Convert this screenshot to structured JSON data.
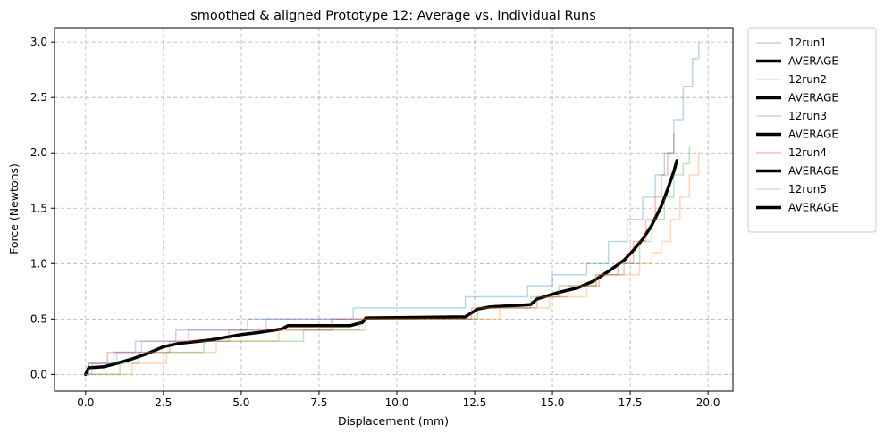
{
  "chart_data": {
    "type": "line",
    "title": "smoothed & aligned Prototype 12: Average vs. Individual Runs",
    "xlabel": "Displacement (mm)",
    "ylabel": "Force (Newtons)",
    "xlim": [
      -1.0,
      20.8
    ],
    "ylim": [
      -0.15,
      3.13
    ],
    "x_ticks": [
      0.0,
      2.5,
      5.0,
      7.5,
      10.0,
      12.5,
      15.0,
      17.5,
      20.0
    ],
    "x_tick_labels": [
      "0.0",
      "2.5",
      "5.0",
      "7.5",
      "10.0",
      "12.5",
      "15.0",
      "17.5",
      "20.0"
    ],
    "y_ticks": [
      0.0,
      0.5,
      1.0,
      1.5,
      2.0,
      2.5,
      3.0
    ],
    "y_tick_labels": [
      "0.0",
      "0.5",
      "1.0",
      "1.5",
      "2.0",
      "2.5",
      "3.0"
    ],
    "grid": true,
    "legend_position": "outside-upper-right",
    "legend": [
      "12run1",
      "AVERAGE",
      "12run2",
      "AVERAGE",
      "12run3",
      "AVERAGE",
      "12run4",
      "AVERAGE",
      "12run5",
      "AVERAGE"
    ],
    "series": [
      {
        "name": "12run1",
        "color": "#1f77b4",
        "opacity": 0.3,
        "width": 1.5,
        "step": true,
        "points": [
          [
            0,
            0
          ],
          [
            0.1,
            0.1
          ],
          [
            0.9,
            0.2
          ],
          [
            1.6,
            0.3
          ],
          [
            2.9,
            0.4
          ],
          [
            5.2,
            0.5
          ],
          [
            7.0,
            0.5
          ],
          [
            8.6,
            0.6
          ],
          [
            12.2,
            0.7
          ],
          [
            14.2,
            0.8
          ],
          [
            15.0,
            0.9
          ],
          [
            16.1,
            1.0
          ],
          [
            16.8,
            1.2
          ],
          [
            17.4,
            1.4
          ],
          [
            17.9,
            1.6
          ],
          [
            18.3,
            1.8
          ],
          [
            18.6,
            2.0
          ],
          [
            18.9,
            2.3
          ],
          [
            19.2,
            2.6
          ],
          [
            19.5,
            2.85
          ],
          [
            19.7,
            3.0
          ]
        ]
      },
      {
        "name": "AVERAGE",
        "color": "#000000",
        "opacity": 1,
        "width": 3.5,
        "step": false,
        "points": [
          [
            0,
            0
          ],
          [
            0.1,
            0.06
          ],
          [
            0.6,
            0.07
          ],
          [
            1.0,
            0.1
          ],
          [
            1.5,
            0.14
          ],
          [
            2.0,
            0.19
          ],
          [
            2.5,
            0.25
          ],
          [
            3.0,
            0.28
          ],
          [
            4.0,
            0.31
          ],
          [
            5.0,
            0.36
          ],
          [
            5.6,
            0.38
          ],
          [
            6.3,
            0.41
          ],
          [
            6.5,
            0.44
          ],
          [
            8.5,
            0.44
          ],
          [
            8.9,
            0.47
          ],
          [
            9.0,
            0.51
          ],
          [
            12.2,
            0.52
          ],
          [
            12.6,
            0.59
          ],
          [
            13.0,
            0.61
          ],
          [
            14.3,
            0.63
          ],
          [
            14.5,
            0.68
          ],
          [
            15.2,
            0.74
          ],
          [
            15.8,
            0.78
          ],
          [
            16.3,
            0.84
          ],
          [
            16.8,
            0.93
          ],
          [
            17.3,
            1.03
          ],
          [
            17.6,
            1.12
          ],
          [
            17.9,
            1.22
          ],
          [
            18.2,
            1.35
          ],
          [
            18.5,
            1.52
          ],
          [
            18.7,
            1.67
          ],
          [
            18.9,
            1.83
          ],
          [
            19.0,
            1.93
          ]
        ]
      },
      {
        "name": "12run2",
        "color": "#ff7f0e",
        "opacity": 0.3,
        "width": 1.5,
        "step": true,
        "points": [
          [
            0,
            0
          ],
          [
            1.5,
            0.1
          ],
          [
            2.6,
            0.2
          ],
          [
            4.2,
            0.3
          ],
          [
            6.2,
            0.4
          ],
          [
            8.8,
            0.5
          ],
          [
            13.3,
            0.6
          ],
          [
            14.9,
            0.7
          ],
          [
            16.1,
            0.8
          ],
          [
            16.4,
            0.9
          ],
          [
            17.8,
            1.0
          ],
          [
            18.2,
            1.1
          ],
          [
            18.5,
            1.2
          ],
          [
            18.8,
            1.4
          ],
          [
            19.1,
            1.6
          ],
          [
            19.4,
            1.8
          ],
          [
            19.7,
            2.0
          ]
        ]
      },
      {
        "name": "12run3",
        "color": "#2ca02c",
        "opacity": 0.3,
        "width": 1.5,
        "step": true,
        "points": [
          [
            0,
            0
          ],
          [
            1.1,
            0.1
          ],
          [
            1.7,
            0.2
          ],
          [
            3.8,
            0.3
          ],
          [
            7.0,
            0.4
          ],
          [
            9.0,
            0.5
          ],
          [
            12.6,
            0.6
          ],
          [
            14.3,
            0.7
          ],
          [
            15.2,
            0.8
          ],
          [
            16.4,
            0.9
          ],
          [
            17.3,
            1.0
          ],
          [
            17.8,
            1.2
          ],
          [
            18.2,
            1.4
          ],
          [
            18.6,
            1.6
          ],
          [
            18.9,
            1.8
          ],
          [
            19.2,
            1.9
          ],
          [
            19.4,
            2.05
          ]
        ]
      },
      {
        "name": "12run4",
        "color": "#d62728",
        "opacity": 0.3,
        "width": 1.5,
        "step": true,
        "points": [
          [
            0,
            0
          ],
          [
            0.1,
            0.1
          ],
          [
            0.7,
            0.2
          ],
          [
            2.7,
            0.3
          ],
          [
            4.6,
            0.4
          ],
          [
            7.9,
            0.5
          ],
          [
            9.0,
            0.5
          ],
          [
            12.4,
            0.6
          ],
          [
            14.5,
            0.7
          ],
          [
            15.5,
            0.8
          ],
          [
            16.5,
            0.9
          ],
          [
            17.1,
            1.0
          ],
          [
            17.6,
            1.2
          ],
          [
            18.0,
            1.4
          ],
          [
            18.3,
            1.6
          ],
          [
            18.5,
            1.8
          ],
          [
            18.7,
            2.0
          ],
          [
            18.9,
            2.17
          ]
        ]
      },
      {
        "name": "12run5",
        "color": "#9467bd",
        "opacity": 0.3,
        "width": 1.5,
        "step": true,
        "points": [
          [
            0,
            0
          ],
          [
            0.2,
            0.1
          ],
          [
            1.0,
            0.2
          ],
          [
            1.8,
            0.3
          ],
          [
            3.3,
            0.4
          ],
          [
            5.8,
            0.5
          ],
          [
            8.2,
            0.5
          ],
          [
            8.9,
            0.5
          ]
        ]
      }
    ]
  }
}
